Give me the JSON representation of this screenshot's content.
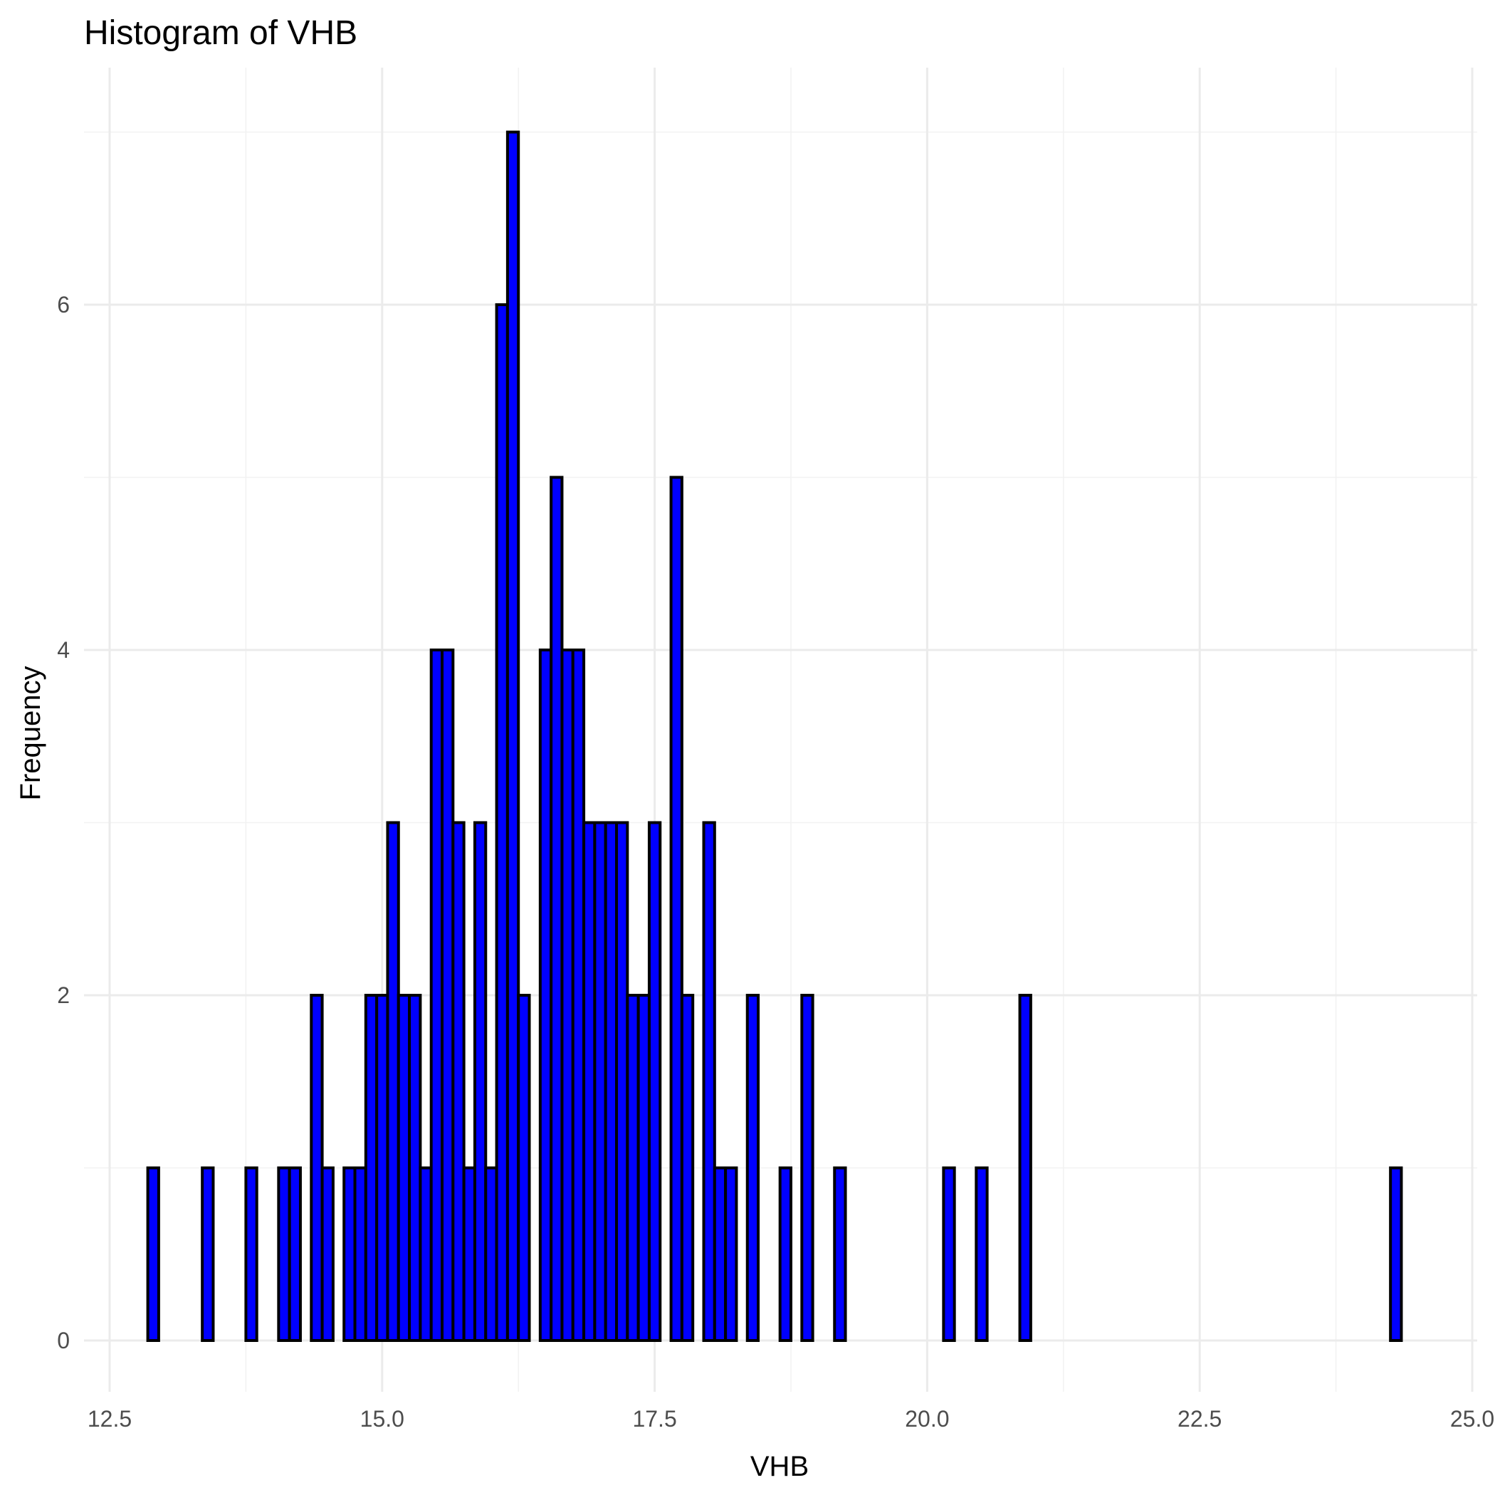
{
  "chart_data": {
    "type": "bar",
    "title": "Histogram of VHB",
    "xlabel": "VHB",
    "ylabel": "Frequency",
    "xlim": [
      12.5,
      25.0
    ],
    "ylim": [
      0,
      7
    ],
    "x_ticks": [
      12.5,
      15.0,
      17.5,
      20.0,
      22.5,
      25.0
    ],
    "x_tick_labels": [
      "12.5",
      "15.0",
      "17.5",
      "20.0",
      "22.5",
      "25.0"
    ],
    "y_ticks": [
      0,
      2,
      4,
      6
    ],
    "y_tick_labels": [
      "0",
      "2",
      "4",
      "6"
    ],
    "bin_width": 0.1,
    "bin_start": 12.85,
    "counts": [
      1,
      0,
      0,
      0,
      0,
      1,
      0,
      0,
      0,
      1,
      0,
      0,
      1,
      1,
      0,
      2,
      1,
      0,
      1,
      1,
      2,
      2,
      3,
      2,
      2,
      1,
      4,
      4,
      3,
      1,
      3,
      1,
      6,
      7,
      2,
      0,
      4,
      5,
      4,
      4,
      3,
      3,
      3,
      3,
      2,
      2,
      3,
      0,
      5,
      2,
      0,
      3,
      1,
      1,
      0,
      2,
      0,
      0,
      1,
      0,
      2,
      0,
      0,
      1,
      0,
      0,
      0,
      0,
      0,
      0,
      0,
      0,
      0,
      1,
      0,
      0,
      1,
      0,
      0,
      0,
      2,
      0,
      0,
      0,
      0,
      0,
      0,
      0,
      0,
      0,
      0,
      0,
      0,
      0,
      0,
      0,
      0,
      0,
      0,
      0,
      0,
      0,
      0,
      0,
      0,
      0,
      0,
      0,
      0,
      0,
      0,
      0,
      0,
      0,
      1
    ],
    "fill_color": "#0000ff",
    "outline_color": "#000000",
    "grid": true,
    "legend": "none"
  }
}
